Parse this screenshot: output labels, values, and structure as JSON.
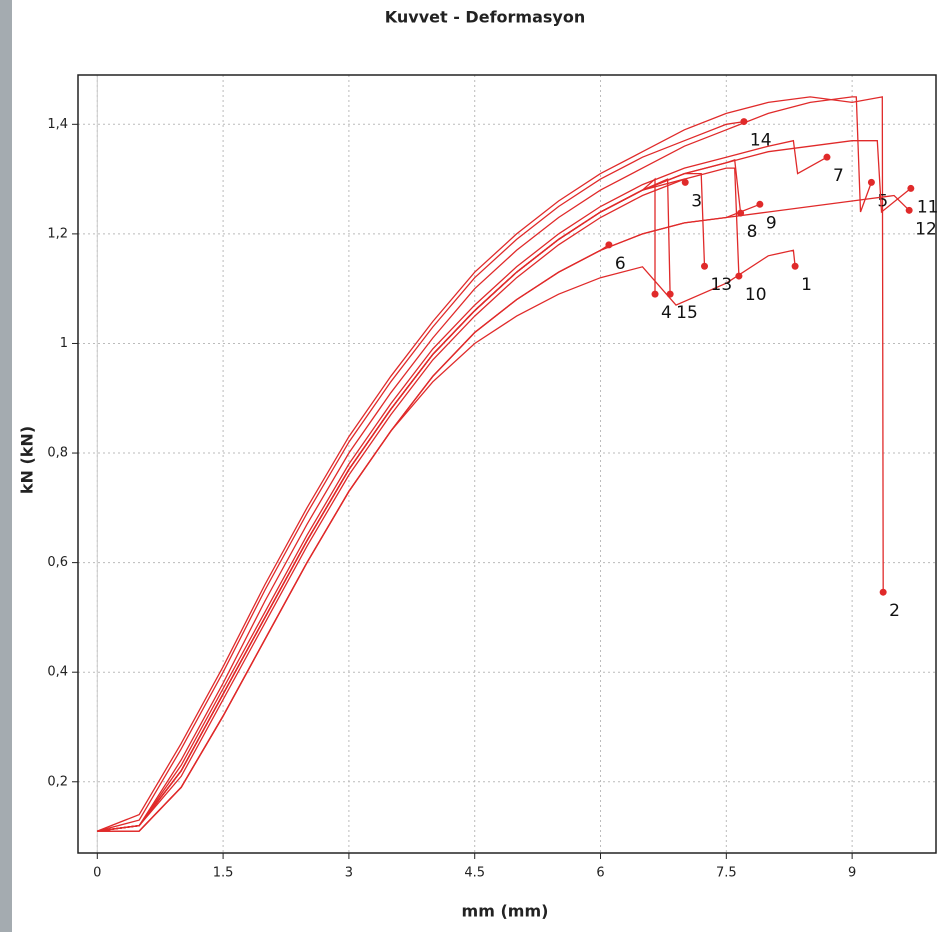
{
  "chart_data": {
    "type": "line",
    "title": "Kuvvet - Deformasyon",
    "x_label": "mm (mm)",
    "y_label": "kN (kN)",
    "xlim": [
      -0.23,
      10
    ],
    "ylim": [
      0.07,
      1.49
    ],
    "xticks": [
      0,
      1.5,
      3,
      4.5,
      6,
      7.5,
      9
    ],
    "yticks": [
      {
        "value": 0.2,
        "label": "0,2"
      },
      {
        "value": 0.4,
        "label": "0,4"
      },
      {
        "value": 0.6,
        "label": "0,6"
      },
      {
        "value": 0.8,
        "label": "0,8"
      },
      1,
      {
        "value": 1.2,
        "label": "1,2"
      },
      {
        "value": 1.4,
        "label": "1,4"
      }
    ],
    "grid": true,
    "color": "#e02a2a",
    "series": [
      {
        "name": "1",
        "x": [
          0,
          0.5,
          1,
          1.5,
          2,
          2.5,
          3,
          3.5,
          4,
          4.5,
          5,
          5.5,
          6,
          6.5,
          6.9,
          7.5,
          8.0,
          8.3,
          8.32
        ],
        "values": [
          0.11,
          0.11,
          0.19,
          0.32,
          0.46,
          0.6,
          0.73,
          0.84,
          0.93,
          1.0,
          1.05,
          1.09,
          1.12,
          1.14,
          1.07,
          1.11,
          1.16,
          1.17,
          1.141
        ]
      },
      {
        "name": "2",
        "x": [
          0,
          0.5,
          1,
          1.5,
          2,
          2.5,
          3,
          3.5,
          4,
          4.5,
          5,
          5.5,
          6,
          6.5,
          7,
          7.5,
          8,
          8.5,
          9.0,
          9.36,
          9.37
        ],
        "values": [
          0.11,
          0.14,
          0.27,
          0.41,
          0.56,
          0.7,
          0.83,
          0.94,
          1.04,
          1.13,
          1.2,
          1.26,
          1.31,
          1.35,
          1.39,
          1.42,
          1.44,
          1.45,
          1.44,
          1.45,
          0.546
        ]
      },
      {
        "name": "3",
        "x": [
          0,
          0.5,
          1,
          1.5,
          2,
          2.5,
          3,
          3.5,
          4,
          4.5,
          5,
          5.5,
          6,
          6.5,
          7.0,
          7.01
        ],
        "values": [
          0.11,
          0.12,
          0.22,
          0.36,
          0.5,
          0.64,
          0.77,
          0.88,
          0.98,
          1.06,
          1.13,
          1.19,
          1.24,
          1.28,
          1.3,
          1.294
        ]
      },
      {
        "name": "4",
        "x": [
          0,
          0.5,
          1,
          1.5,
          2,
          2.5,
          3,
          3.5,
          4,
          4.5,
          5,
          5.5,
          6,
          6.5,
          6.65,
          6.65
        ],
        "values": [
          0.11,
          0.12,
          0.22,
          0.36,
          0.5,
          0.64,
          0.77,
          0.88,
          0.98,
          1.06,
          1.13,
          1.19,
          1.24,
          1.28,
          1.3,
          1.09
        ]
      },
      {
        "name": "5",
        "x": [
          0,
          0.5,
          1,
          1.5,
          2,
          2.5,
          3,
          3.5,
          4,
          4.5,
          5,
          5.5,
          6,
          6.5,
          7,
          7.5,
          8,
          8.5,
          9,
          9.05,
          9.1,
          9.23
        ],
        "values": [
          0.11,
          0.12,
          0.24,
          0.38,
          0.53,
          0.67,
          0.8,
          0.91,
          1.01,
          1.1,
          1.17,
          1.23,
          1.28,
          1.32,
          1.36,
          1.39,
          1.42,
          1.44,
          1.45,
          1.45,
          1.24,
          1.294
        ]
      },
      {
        "name": "6",
        "x": [
          0,
          0.5,
          1,
          1.5,
          2,
          2.5,
          3,
          3.5,
          4,
          4.5,
          5,
          5.5,
          6,
          6.1
        ],
        "values": [
          0.11,
          0.11,
          0.19,
          0.32,
          0.46,
          0.6,
          0.73,
          0.84,
          0.94,
          1.02,
          1.08,
          1.13,
          1.17,
          1.18
        ]
      },
      {
        "name": "7",
        "x": [
          0,
          0.5,
          1,
          1.5,
          2,
          2.5,
          3,
          3.5,
          4,
          4.5,
          5,
          5.5,
          6,
          6.5,
          7,
          7.5,
          8,
          8.3,
          8.35,
          8.7
        ],
        "values": [
          0.11,
          0.12,
          0.23,
          0.37,
          0.51,
          0.65,
          0.78,
          0.89,
          0.99,
          1.07,
          1.14,
          1.2,
          1.25,
          1.29,
          1.32,
          1.34,
          1.36,
          1.37,
          1.31,
          1.34
        ]
      },
      {
        "name": "8",
        "x": [
          0,
          0.5,
          1,
          1.5,
          2,
          2.5,
          3,
          3.5,
          4,
          4.5,
          5,
          5.5,
          6,
          6.5,
          7,
          7.5,
          7.6,
          7.67
        ],
        "values": [
          0.11,
          0.12,
          0.22,
          0.36,
          0.5,
          0.64,
          0.77,
          0.88,
          0.98,
          1.06,
          1.13,
          1.19,
          1.24,
          1.28,
          1.31,
          1.33,
          1.335,
          1.238
        ]
      },
      {
        "name": "9",
        "x": [
          0,
          0.5,
          1,
          1.5,
          2,
          2.5,
          3,
          3.5,
          4,
          4.5,
          5,
          5.5,
          6,
          6.5,
          7,
          7.5,
          7.9
        ],
        "values": [
          0.11,
          0.11,
          0.19,
          0.32,
          0.46,
          0.6,
          0.73,
          0.84,
          0.94,
          1.02,
          1.08,
          1.13,
          1.17,
          1.2,
          1.22,
          1.23,
          1.254
        ]
      },
      {
        "name": "10",
        "x": [
          0,
          0.5,
          1,
          1.5,
          2,
          2.5,
          3,
          3.5,
          4,
          4.5,
          5,
          5.5,
          6,
          6.5,
          7,
          7.5,
          7.6,
          7.65
        ],
        "values": [
          0.11,
          0.12,
          0.21,
          0.35,
          0.49,
          0.63,
          0.76,
          0.87,
          0.97,
          1.05,
          1.12,
          1.18,
          1.23,
          1.27,
          1.3,
          1.32,
          1.32,
          1.123
        ]
      },
      {
        "name": "11",
        "x": [
          0,
          0.5,
          1,
          1.5,
          2,
          2.5,
          3,
          3.5,
          4,
          4.5,
          5,
          5.5,
          6,
          6.5,
          7,
          7.5,
          8,
          8.5,
          9,
          9.3,
          9.35,
          9.7
        ],
        "values": [
          0.11,
          0.12,
          0.22,
          0.36,
          0.5,
          0.64,
          0.77,
          0.88,
          0.98,
          1.06,
          1.13,
          1.19,
          1.24,
          1.28,
          1.31,
          1.33,
          1.35,
          1.36,
          1.37,
          1.37,
          1.24,
          1.283
        ]
      },
      {
        "name": "12",
        "x": [
          0,
          0.5,
          1,
          1.5,
          2,
          2.5,
          3,
          3.5,
          4,
          4.5,
          5,
          5.5,
          6,
          6.5,
          7,
          7.5,
          8,
          8.5,
          9,
          9.5,
          9.68
        ],
        "values": [
          0.11,
          0.11,
          0.19,
          0.32,
          0.46,
          0.6,
          0.73,
          0.84,
          0.94,
          1.02,
          1.08,
          1.13,
          1.17,
          1.2,
          1.22,
          1.23,
          1.24,
          1.25,
          1.26,
          1.27,
          1.243
        ]
      },
      {
        "name": "13",
        "x": [
          0,
          0.5,
          1,
          1.5,
          2,
          2.5,
          3,
          3.5,
          4,
          4.5,
          5,
          5.5,
          6,
          6.5,
          7,
          7.2,
          7.24
        ],
        "values": [
          0.11,
          0.12,
          0.22,
          0.36,
          0.5,
          0.64,
          0.77,
          0.88,
          0.98,
          1.06,
          1.13,
          1.19,
          1.24,
          1.28,
          1.31,
          1.31,
          1.141
        ]
      },
      {
        "name": "14",
        "x": [
          0,
          0.5,
          1,
          1.5,
          2,
          2.5,
          3,
          3.5,
          4,
          4.5,
          5,
          5.5,
          6,
          6.5,
          7,
          7.5,
          7.71
        ],
        "values": [
          0.11,
          0.13,
          0.26,
          0.4,
          0.55,
          0.69,
          0.82,
          0.93,
          1.03,
          1.12,
          1.19,
          1.25,
          1.3,
          1.34,
          1.37,
          1.4,
          1.405
        ]
      },
      {
        "name": "15",
        "x": [
          0,
          0.5,
          1,
          1.5,
          2,
          2.5,
          3,
          3.5,
          4,
          4.5,
          5,
          5.5,
          6,
          6.5,
          6.8,
          6.83
        ],
        "values": [
          0.11,
          0.12,
          0.22,
          0.36,
          0.5,
          0.64,
          0.77,
          0.88,
          0.98,
          1.06,
          1.13,
          1.19,
          1.24,
          1.28,
          1.3,
          1.09
        ]
      }
    ]
  }
}
